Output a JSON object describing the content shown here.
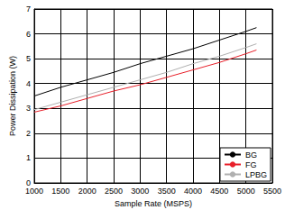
{
  "chart_data": {
    "type": "line",
    "x_label": "Sample Rate (MSPS)",
    "y_label": "Power Dissipation (W)",
    "x": [
      1000,
      1500,
      2000,
      2500,
      3000,
      3500,
      4000,
      4500,
      5000,
      5200
    ],
    "series": [
      {
        "name": "BG",
        "color": "#000000",
        "values": [
          3.5,
          3.85,
          4.15,
          4.45,
          4.8,
          5.1,
          5.4,
          5.75,
          6.1,
          6.25
        ]
      },
      {
        "name": "FG",
        "color": "#e8202a",
        "values": [
          2.85,
          3.1,
          3.4,
          3.7,
          3.95,
          4.25,
          4.55,
          4.85,
          5.2,
          5.35
        ]
      },
      {
        "name": "LPBG",
        "color": "#b0b0b0",
        "values": [
          2.95,
          3.25,
          3.55,
          3.85,
          4.15,
          4.45,
          4.8,
          5.1,
          5.45,
          5.6
        ]
      }
    ],
    "xlim": [
      1000,
      5500
    ],
    "xticks": [
      1000,
      1500,
      2000,
      2500,
      3000,
      3500,
      4000,
      4500,
      5000,
      5500
    ],
    "ylim": [
      0,
      7
    ],
    "yticks": [
      0,
      1,
      2,
      3,
      4,
      5,
      6,
      7
    ],
    "grid": true,
    "legend": "lower right"
  }
}
